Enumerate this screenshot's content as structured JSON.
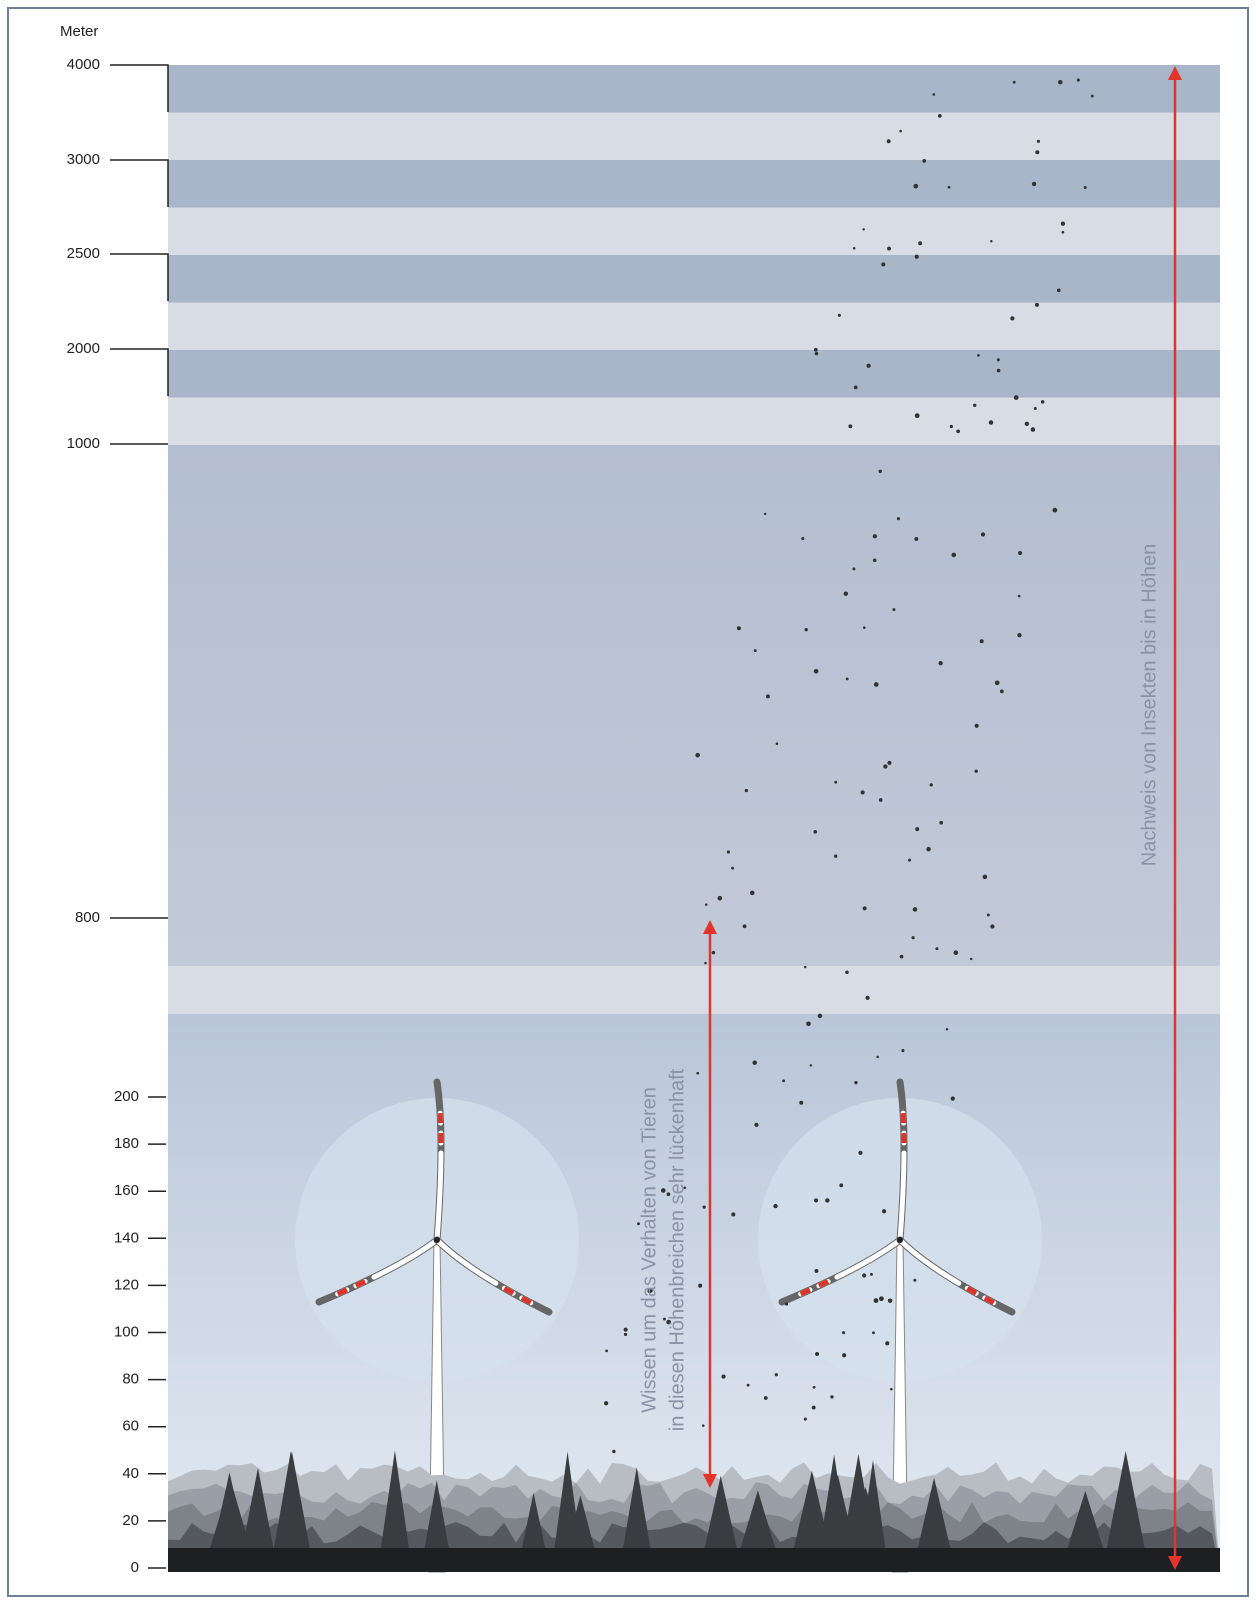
{
  "axis": {
    "unit": "Meter",
    "upper_ticks": [
      4000,
      3000,
      2500,
      2000,
      1000,
      800
    ],
    "lower_ticks": [
      200,
      180,
      160,
      140,
      120,
      100,
      80,
      60,
      40,
      20,
      0
    ]
  },
  "annotations": {
    "insects": "Nachweis von Insekten bis in Höhen",
    "knowledge": [
      "Wissen um das Verhalten von Tieren",
      "in diesen Höhenbreichen sehr lückenhaft"
    ]
  }
}
